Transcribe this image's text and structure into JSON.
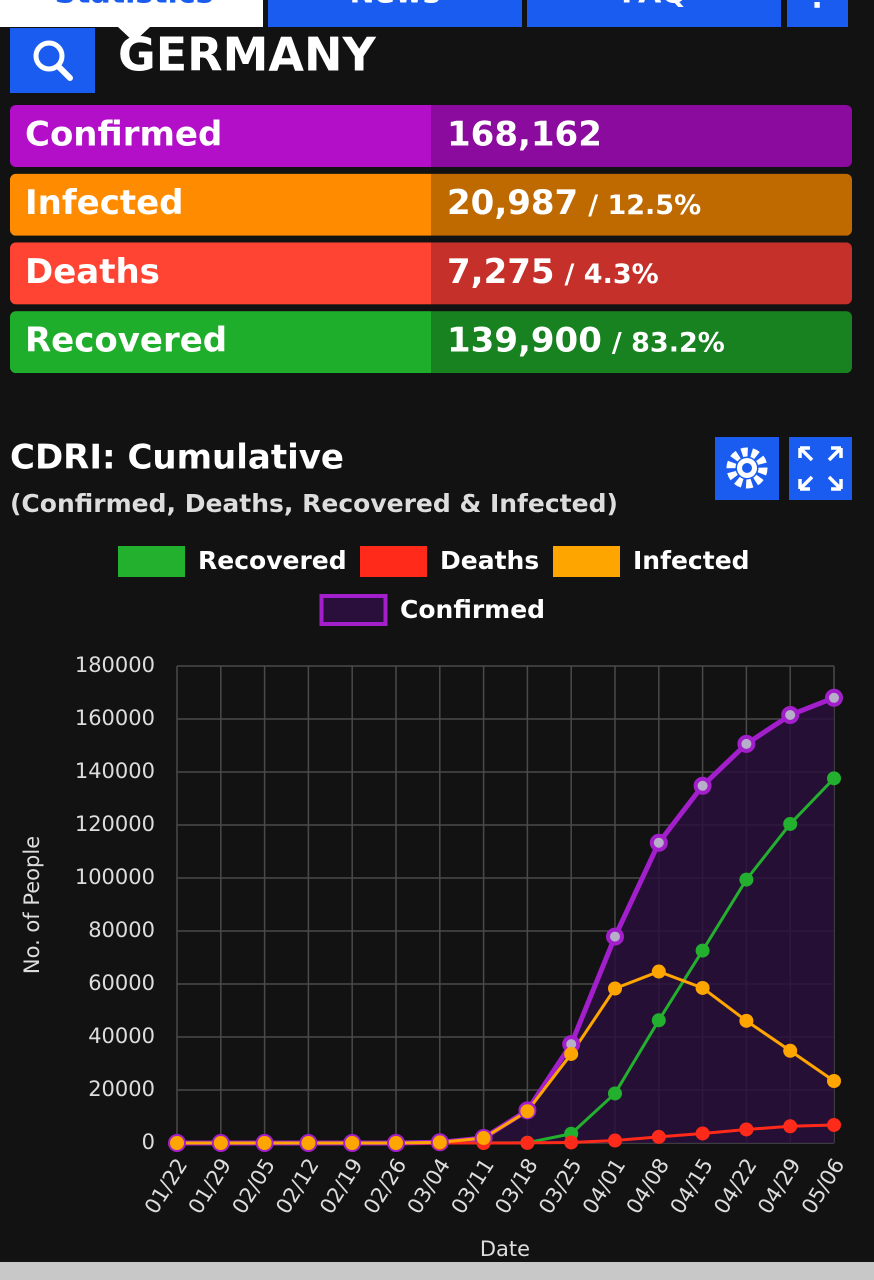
{
  "tabs": [
    "Statistics",
    "News",
    "FAQ",
    "⋮"
  ],
  "header": {
    "title": "GERMANY"
  },
  "stats": [
    {
      "label": "Confirmed",
      "value": "168,162",
      "color": "#b30fc9",
      "dark": "#8b0b9e"
    },
    {
      "label": "Infected",
      "value": "20,987",
      "ratio": "/ 12.5%",
      "color": "#ff8c00",
      "dark": "#bf6a00"
    },
    {
      "label": "Deaths",
      "value": "7,275",
      "ratio": "/ 4.3%",
      "color": "#ff4434",
      "dark": "#c5302a"
    },
    {
      "label": "Recovered",
      "value": "139,900",
      "ratio": "/ 83.2%",
      "color": "#1fae2b",
      "dark": "#17821f"
    }
  ],
  "chart_data": {
    "type": "line",
    "title": "CDRI: Cumulative",
    "subtitle": "(Confirmed, Deaths, Recovered & Infected)",
    "x_label": "Date",
    "y_label": "No. of People",
    "categories": [
      "01/22",
      "01/29",
      "02/05",
      "02/12",
      "02/19",
      "02/26",
      "03/04",
      "03/11",
      "03/18",
      "03/25",
      "04/01",
      "04/08",
      "04/15",
      "04/22",
      "04/29",
      "05/06"
    ],
    "series": [
      {
        "name": "Recovered",
        "color": "#22b02e",
        "values": [
          0,
          0,
          0,
          0,
          0,
          0,
          0,
          25,
          100,
          3500,
          18700,
          46300,
          72600,
          99400,
          120400,
          137600
        ]
      },
      {
        "name": "Deaths",
        "color": "#ff2a1a",
        "values": [
          0,
          0,
          0,
          0,
          0,
          0,
          0,
          3,
          30,
          206,
          930,
          2300,
          3600,
          5100,
          6300,
          6800
        ]
      },
      {
        "name": "Infected",
        "color": "#ffa500",
        "values": [
          0,
          0,
          0,
          0,
          0,
          0,
          250,
          1870,
          12000,
          33600,
          58300,
          64700,
          58500,
          46100,
          34800,
          23400
        ]
      },
      {
        "name": "Confirmed",
        "color": "#a31fcc",
        "fill": "#2a0f3c",
        "values": [
          0,
          0,
          0,
          0,
          0,
          0,
          262,
          1900,
          12300,
          37300,
          77900,
          113300,
          134800,
          150600,
          161500,
          168000
        ]
      }
    ],
    "ylim": [
      0,
      180000
    ],
    "yticks": [
      0,
      20000,
      40000,
      60000,
      80000,
      100000,
      120000,
      140000,
      160000,
      180000
    ],
    "grid": true
  }
}
